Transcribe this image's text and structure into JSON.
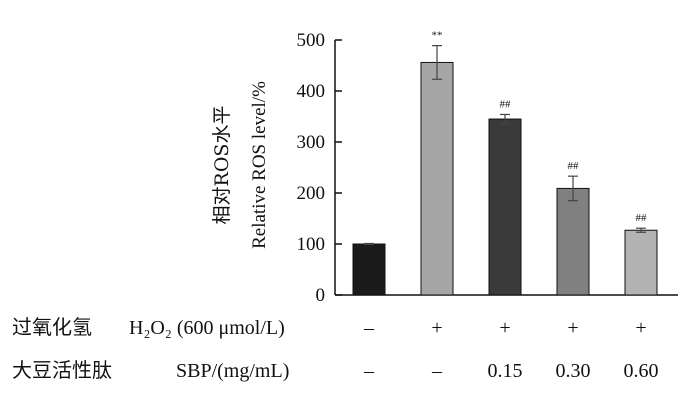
{
  "chart_data": {
    "type": "bar",
    "categories": [
      "control",
      "H2O2",
      "H2O2+SBP 0.15",
      "H2O2+SBP 0.30",
      "H2O2+SBP 0.60"
    ],
    "values": [
      100,
      456,
      345,
      209,
      127
    ],
    "errors": [
      1,
      33,
      9,
      24,
      4
    ],
    "bar_colors": [
      "#1a1a1a",
      "#a6a6a6",
      "#3a3a3a",
      "#808080",
      "#b3b3b3"
    ],
    "significance": [
      "",
      "**",
      "##",
      "##",
      "##"
    ],
    "ylabel_cn": "相对ROS水平",
    "ylabel_en": "Relative ROS level/%",
    "ylim": [
      0,
      500
    ],
    "yticks": [
      0,
      100,
      200,
      300,
      400,
      500
    ],
    "grid": false,
    "legend": "none"
  },
  "treatments": [
    {
      "label": "过氧化氢",
      "agent": "H₂O₂ (600 μmol/L)",
      "values": [
        "–",
        "+",
        "+",
        "+",
        "+"
      ]
    },
    {
      "label": "大豆活性肽",
      "agent": "SBP/(mg/mL)",
      "values": [
        "–",
        "–",
        "0.15",
        "0.30",
        "0.60"
      ]
    }
  ]
}
